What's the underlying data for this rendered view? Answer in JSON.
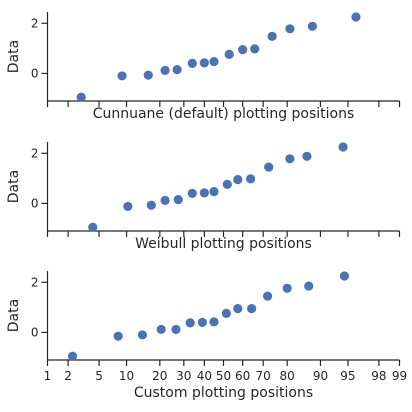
{
  "chart_data": [
    {
      "type": "scatter",
      "xlabel": "Cunnuane (default) plotting positions",
      "ylabel": "Data",
      "xscale": "probability",
      "xlim": [
        1,
        99
      ],
      "ylim": [
        -1.1,
        2.45
      ],
      "yticks": [
        0,
        2
      ],
      "show_xticklabels": false,
      "grid": false,
      "points": [
        {
          "x": 3.0,
          "y": -0.95
        },
        {
          "x": 9.0,
          "y": -0.1
        },
        {
          "x": 16.0,
          "y": -0.07
        },
        {
          "x": 22.0,
          "y": 0.12
        },
        {
          "x": 27.0,
          "y": 0.15
        },
        {
          "x": 34.0,
          "y": 0.4
        },
        {
          "x": 40.0,
          "y": 0.42
        },
        {
          "x": 45.0,
          "y": 0.47
        },
        {
          "x": 53.0,
          "y": 0.76
        },
        {
          "x": 60.0,
          "y": 0.95
        },
        {
          "x": 66.0,
          "y": 0.98
        },
        {
          "x": 74.0,
          "y": 1.48
        },
        {
          "x": 81.0,
          "y": 1.78
        },
        {
          "x": 88.0,
          "y": 1.88
        },
        {
          "x": 96.0,
          "y": 2.25
        }
      ]
    },
    {
      "type": "scatter",
      "xlabel": "Weibull plotting positions",
      "ylabel": "Data",
      "xscale": "probability",
      "xlim": [
        1,
        99
      ],
      "ylim": [
        -1.1,
        2.45
      ],
      "yticks": [
        0,
        2
      ],
      "show_xticklabels": false,
      "grid": false,
      "points": [
        {
          "x": 4.2,
          "y": -0.95
        },
        {
          "x": 10.3,
          "y": -0.12
        },
        {
          "x": 17.0,
          "y": -0.07
        },
        {
          "x": 22.0,
          "y": 0.12
        },
        {
          "x": 27.5,
          "y": 0.15
        },
        {
          "x": 34.0,
          "y": 0.4
        },
        {
          "x": 40.0,
          "y": 0.42
        },
        {
          "x": 45.0,
          "y": 0.47
        },
        {
          "x": 52.0,
          "y": 0.76
        },
        {
          "x": 57.5,
          "y": 0.95
        },
        {
          "x": 64.0,
          "y": 0.98
        },
        {
          "x": 72.5,
          "y": 1.45
        },
        {
          "x": 81.0,
          "y": 1.78
        },
        {
          "x": 86.5,
          "y": 1.88
        },
        {
          "x": 94.3,
          "y": 2.25
        }
      ]
    },
    {
      "type": "scatter",
      "xlabel": "Custom plotting positions",
      "ylabel": "Data",
      "xscale": "probability",
      "xlim": [
        1,
        99
      ],
      "ylim": [
        -1.1,
        2.45
      ],
      "yticks": [
        0,
        2
      ],
      "xticks": [
        1,
        2,
        5,
        10,
        20,
        30,
        40,
        50,
        60,
        70,
        80,
        90,
        95,
        98,
        99
      ],
      "show_xticklabels": true,
      "grid": false,
      "points": [
        {
          "x": 2.3,
          "y": -0.95
        },
        {
          "x": 8.2,
          "y": -0.15
        },
        {
          "x": 14.2,
          "y": -0.1
        },
        {
          "x": 20.5,
          "y": 0.12
        },
        {
          "x": 26.5,
          "y": 0.12
        },
        {
          "x": 33.0,
          "y": 0.38
        },
        {
          "x": 39.0,
          "y": 0.4
        },
        {
          "x": 45.0,
          "y": 0.42
        },
        {
          "x": 51.5,
          "y": 0.76
        },
        {
          "x": 57.5,
          "y": 0.95
        },
        {
          "x": 64.5,
          "y": 0.95
        },
        {
          "x": 72.0,
          "y": 1.45
        },
        {
          "x": 80.0,
          "y": 1.76
        },
        {
          "x": 87.0,
          "y": 1.85
        },
        {
          "x": 94.5,
          "y": 2.25
        }
      ]
    }
  ],
  "colors": {
    "points": "#4c72b0",
    "axes": "#262626",
    "background": "#ffffff"
  }
}
